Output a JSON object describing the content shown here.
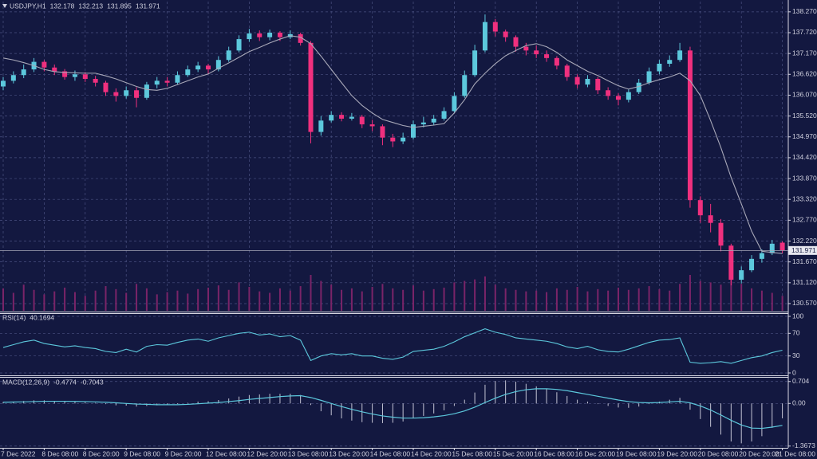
{
  "chart_data": [
    {
      "type": "candlestick",
      "title": "USDJPY,H1",
      "categories": [
        "7 Dec 2022",
        null,
        null,
        null,
        "8 Dec 08:00",
        null,
        null,
        null,
        "8 Dec 20:00",
        null,
        null,
        null,
        "9 Dec 08:00",
        null,
        null,
        null,
        "9 Dec 20:00",
        null,
        null,
        null,
        "12 Dec 08:00",
        null,
        null,
        null,
        "12 Dec 20:00",
        null,
        null,
        null,
        "13 Dec 08:00",
        null,
        null,
        null,
        "13 Dec 20:00",
        null,
        null,
        null,
        "14 Dec 08:00",
        null,
        null,
        null,
        "14 Dec 20:00",
        null,
        null,
        null,
        "15 Dec 08:00",
        null,
        null,
        null,
        "15 Dec 20:00",
        null,
        null,
        null,
        "16 Dec 08:00",
        null,
        null,
        null,
        "16 Dec 20:00",
        null,
        null,
        null,
        "19 Dec 08:00",
        null,
        null,
        null,
        "19 Dec 20:00",
        null,
        null,
        null,
        "20 Dec 08:00",
        null,
        null,
        null,
        "20 Dec 20:00",
        null,
        null,
        null,
        "21 Dec 08:00"
      ],
      "open": [
        136.3,
        136.45,
        136.6,
        136.75,
        136.95,
        136.8,
        136.7,
        136.55,
        136.62,
        136.5,
        136.4,
        136.15,
        136.05,
        136.2,
        136.0,
        136.35,
        136.45,
        136.4,
        136.6,
        136.75,
        136.85,
        136.75,
        137.0,
        137.25,
        137.55,
        137.7,
        137.6,
        137.72,
        137.6,
        137.68,
        137.45,
        135.1,
        135.4,
        135.55,
        135.45,
        135.5,
        135.3,
        135.25,
        134.95,
        134.85,
        134.95,
        135.3,
        135.35,
        135.45,
        135.65,
        136.05,
        136.6,
        137.25,
        138.0,
        137.75,
        137.6,
        137.35,
        137.25,
        137.15,
        137.05,
        136.85,
        136.55,
        136.35,
        136.5,
        136.2,
        136.05,
        135.95,
        136.15,
        136.4,
        136.7,
        136.9,
        137.0,
        137.25,
        133.3,
        132.9,
        132.7,
        132.1,
        131.2,
        131.45,
        131.75,
        131.9,
        132.178
      ],
      "high": [
        136.55,
        136.7,
        136.88,
        137.05,
        137.0,
        136.88,
        136.76,
        136.72,
        136.68,
        136.58,
        136.45,
        136.25,
        136.3,
        136.28,
        136.42,
        136.55,
        136.55,
        136.7,
        136.85,
        136.95,
        136.9,
        137.1,
        137.35,
        137.65,
        137.82,
        137.78,
        137.8,
        137.76,
        137.78,
        137.72,
        137.5,
        135.52,
        135.65,
        135.62,
        135.6,
        135.55,
        135.42,
        135.3,
        135.05,
        135.08,
        135.4,
        135.5,
        135.55,
        135.75,
        136.15,
        136.72,
        137.4,
        138.2,
        138.08,
        137.8,
        137.65,
        137.45,
        137.38,
        137.25,
        137.1,
        136.9,
        136.62,
        136.6,
        136.55,
        136.28,
        136.12,
        136.22,
        136.5,
        136.8,
        137.0,
        137.12,
        137.45,
        137.35,
        133.4,
        133.2,
        132.8,
        132.15,
        131.55,
        131.85,
        132.0,
        132.25,
        132.213
      ],
      "low": [
        136.2,
        136.38,
        136.52,
        136.68,
        136.7,
        136.6,
        136.48,
        136.45,
        136.42,
        136.3,
        136.05,
        135.9,
        135.98,
        135.75,
        135.95,
        136.25,
        136.3,
        136.35,
        136.55,
        136.68,
        136.62,
        136.7,
        136.95,
        137.2,
        137.48,
        137.5,
        137.52,
        137.5,
        137.55,
        137.38,
        134.8,
        135.0,
        135.35,
        135.38,
        135.4,
        135.2,
        135.12,
        134.75,
        134.7,
        134.78,
        134.9,
        135.22,
        135.28,
        135.4,
        135.6,
        136.0,
        136.55,
        137.2,
        137.62,
        137.48,
        137.22,
        137.12,
        137.05,
        136.95,
        136.75,
        136.45,
        136.25,
        136.28,
        136.1,
        135.95,
        135.8,
        135.88,
        136.1,
        136.35,
        136.62,
        136.82,
        136.95,
        133.1,
        132.7,
        132.45,
        131.95,
        131.05,
        131.1,
        131.4,
        131.65,
        131.85,
        131.895
      ],
      "close": [
        136.45,
        136.6,
        136.75,
        136.95,
        136.8,
        136.7,
        136.55,
        136.62,
        136.5,
        136.4,
        136.15,
        136.05,
        136.2,
        136.0,
        136.35,
        136.45,
        136.4,
        136.6,
        136.75,
        136.85,
        136.75,
        137.0,
        137.25,
        137.55,
        137.7,
        137.6,
        137.72,
        137.6,
        137.68,
        137.45,
        135.1,
        135.4,
        135.55,
        135.45,
        135.5,
        135.3,
        135.25,
        134.95,
        134.85,
        134.95,
        135.3,
        135.35,
        135.45,
        135.65,
        136.05,
        136.6,
        137.25,
        138.0,
        137.75,
        137.6,
        137.35,
        137.25,
        137.15,
        137.05,
        136.85,
        136.55,
        136.35,
        136.5,
        136.2,
        136.05,
        135.95,
        136.15,
        136.4,
        136.7,
        136.9,
        137.0,
        137.25,
        133.3,
        132.9,
        132.7,
        132.1,
        131.2,
        131.45,
        131.75,
        131.9,
        132.15,
        131.971
      ],
      "up_color": "#5cc8dc",
      "down_color": "#f0307e",
      "overlay": {
        "color": "#a8a8b8",
        "values": [
          137.05,
          137.0,
          136.93,
          136.85,
          136.75,
          136.69,
          136.67,
          136.66,
          136.65,
          136.65,
          136.58,
          136.5,
          136.4,
          136.3,
          136.22,
          136.2,
          136.25,
          136.35,
          136.45,
          136.55,
          136.63,
          136.78,
          136.92,
          137.07,
          137.22,
          137.33,
          137.45,
          137.55,
          137.64,
          137.6,
          137.43,
          137.1,
          136.75,
          136.4,
          136.06,
          135.8,
          135.6,
          135.43,
          135.35,
          135.27,
          135.22,
          135.25,
          135.28,
          135.32,
          135.6,
          135.95,
          136.37,
          136.65,
          136.9,
          137.11,
          137.25,
          137.38,
          137.43,
          137.35,
          137.2,
          137.0,
          136.85,
          136.7,
          136.59,
          136.45,
          136.32,
          136.23,
          136.3,
          136.4,
          136.48,
          136.55,
          136.65,
          136.45,
          136.06,
          135.4,
          134.69,
          133.9,
          133.2,
          132.48,
          131.95,
          131.92,
          131.89
        ]
      },
      "volume": {
        "color": "#7a2468",
        "values": [
          30,
          24,
          35,
          28,
          22,
          26,
          31,
          25,
          20,
          27,
          33,
          29,
          24,
          36,
          30,
          22,
          25,
          27,
          23,
          29,
          31,
          34,
          28,
          38,
          32,
          26,
          24,
          30,
          27,
          33,
          48,
          40,
          35,
          28,
          30,
          26,
          32,
          36,
          30,
          28,
          34,
          27,
          29,
          31,
          38,
          40,
          42,
          46,
          35,
          30,
          28,
          26,
          27,
          25,
          30,
          28,
          32,
          26,
          29,
          27,
          31,
          28,
          30,
          33,
          29,
          27,
          36,
          48,
          40,
          38,
          35,
          44,
          36,
          30,
          27,
          24,
          20
        ]
      },
      "ylim": [
        130.38,
        138.54
      ],
      "yticks": [
        {
          "value": 138.27,
          "label": "138.270"
        },
        {
          "value": 137.72,
          "label": "137.720"
        },
        {
          "value": 137.17,
          "label": "137.170"
        },
        {
          "value": 136.62,
          "label": "136.620"
        },
        {
          "value": 136.07,
          "label": "136.070"
        },
        {
          "value": 135.52,
          "label": "135.520"
        },
        {
          "value": 134.97,
          "label": "134.970"
        },
        {
          "value": 134.42,
          "label": "134.420"
        },
        {
          "value": 133.87,
          "label": "133.870"
        },
        {
          "value": 133.32,
          "label": "133.320"
        },
        {
          "value": 132.77,
          "label": "132.770"
        },
        {
          "value": 132.22,
          "label": "132.220"
        },
        {
          "value": 131.67,
          "label": "131.670"
        },
        {
          "value": 131.12,
          "label": "131.120"
        },
        {
          "value": 130.57,
          "label": "130.570"
        }
      ],
      "grid": true
    },
    {
      "type": "line",
      "title": "RSI(14)",
      "color": "#5cc8dc",
      "values": [
        45,
        50,
        55,
        58,
        52,
        49,
        46,
        48,
        45,
        43,
        38,
        36,
        42,
        37,
        47,
        50,
        49,
        54,
        58,
        60,
        56,
        62,
        66,
        70,
        72,
        67,
        69,
        64,
        66,
        58,
        22,
        30,
        34,
        32,
        34,
        30,
        30,
        26,
        24,
        28,
        38,
        40,
        42,
        47,
        55,
        64,
        71,
        78,
        72,
        68,
        62,
        60,
        58,
        56,
        52,
        46,
        43,
        47,
        41,
        38,
        37,
        42,
        48,
        54,
        58,
        59,
        62,
        19,
        17,
        18,
        20,
        17,
        22,
        27,
        30,
        36,
        40.1694
      ],
      "ylim": [
        0,
        100
      ],
      "yticks": [
        100,
        70,
        30,
        0
      ],
      "grid": true
    },
    {
      "type": "macd",
      "title": "MACD(12,26,9)",
      "series": [
        {
          "type": "histogram",
          "color": "#c4c4d4",
          "values": [
            0.05,
            0.06,
            0.08,
            0.1,
            0.1,
            0.08,
            0.06,
            0.05,
            0.04,
            0.02,
            -0.02,
            -0.06,
            -0.07,
            -0.1,
            -0.08,
            -0.06,
            -0.05,
            -0.02,
            0.02,
            0.06,
            0.07,
            0.11,
            0.16,
            0.22,
            0.27,
            0.29,
            0.31,
            0.31,
            0.31,
            0.27,
            -0.05,
            -0.25,
            -0.38,
            -0.48,
            -0.55,
            -0.6,
            -0.62,
            -0.63,
            -0.62,
            -0.58,
            -0.48,
            -0.4,
            -0.32,
            -0.22,
            -0.08,
            0.12,
            0.35,
            0.6,
            0.72,
            0.74,
            0.7,
            0.63,
            0.55,
            0.46,
            0.36,
            0.24,
            0.12,
            0.06,
            -0.02,
            -0.08,
            -0.13,
            -0.14,
            -0.1,
            -0.02,
            0.06,
            0.12,
            0.18,
            -0.2,
            -0.5,
            -0.75,
            -1.0,
            -1.22,
            -1.28,
            -1.22,
            -1.05,
            -0.78,
            -0.4774
          ]
        },
        {
          "type": "line",
          "color": "#5cc8dc",
          "values": [
            0.04,
            0.045,
            0.05,
            0.06,
            0.07,
            0.07,
            0.07,
            0.065,
            0.06,
            0.05,
            0.04,
            0.02,
            0.0,
            -0.02,
            -0.03,
            -0.04,
            -0.04,
            -0.04,
            -0.03,
            -0.01,
            0.01,
            0.03,
            0.06,
            0.09,
            0.13,
            0.16,
            0.19,
            0.22,
            0.24,
            0.25,
            0.19,
            0.1,
            0.0,
            -0.1,
            -0.19,
            -0.27,
            -0.34,
            -0.4,
            -0.44,
            -0.47,
            -0.47,
            -0.46,
            -0.43,
            -0.39,
            -0.33,
            -0.24,
            -0.12,
            0.03,
            0.17,
            0.29,
            0.38,
            0.44,
            0.47,
            0.47,
            0.45,
            0.41,
            0.35,
            0.29,
            0.23,
            0.17,
            0.11,
            0.06,
            0.03,
            0.02,
            0.03,
            0.05,
            0.07,
            0.02,
            -0.08,
            -0.21,
            -0.37,
            -0.54,
            -0.69,
            -0.79,
            -0.8,
            -0.76,
            -0.7043
          ]
        }
      ],
      "ylim": [
        -1.45,
        0.8
      ],
      "yticks": [
        0.704,
        {
          "value": 0,
          "label": "0.00"
        },
        -1.3673
      ],
      "grid": true
    }
  ]
}
